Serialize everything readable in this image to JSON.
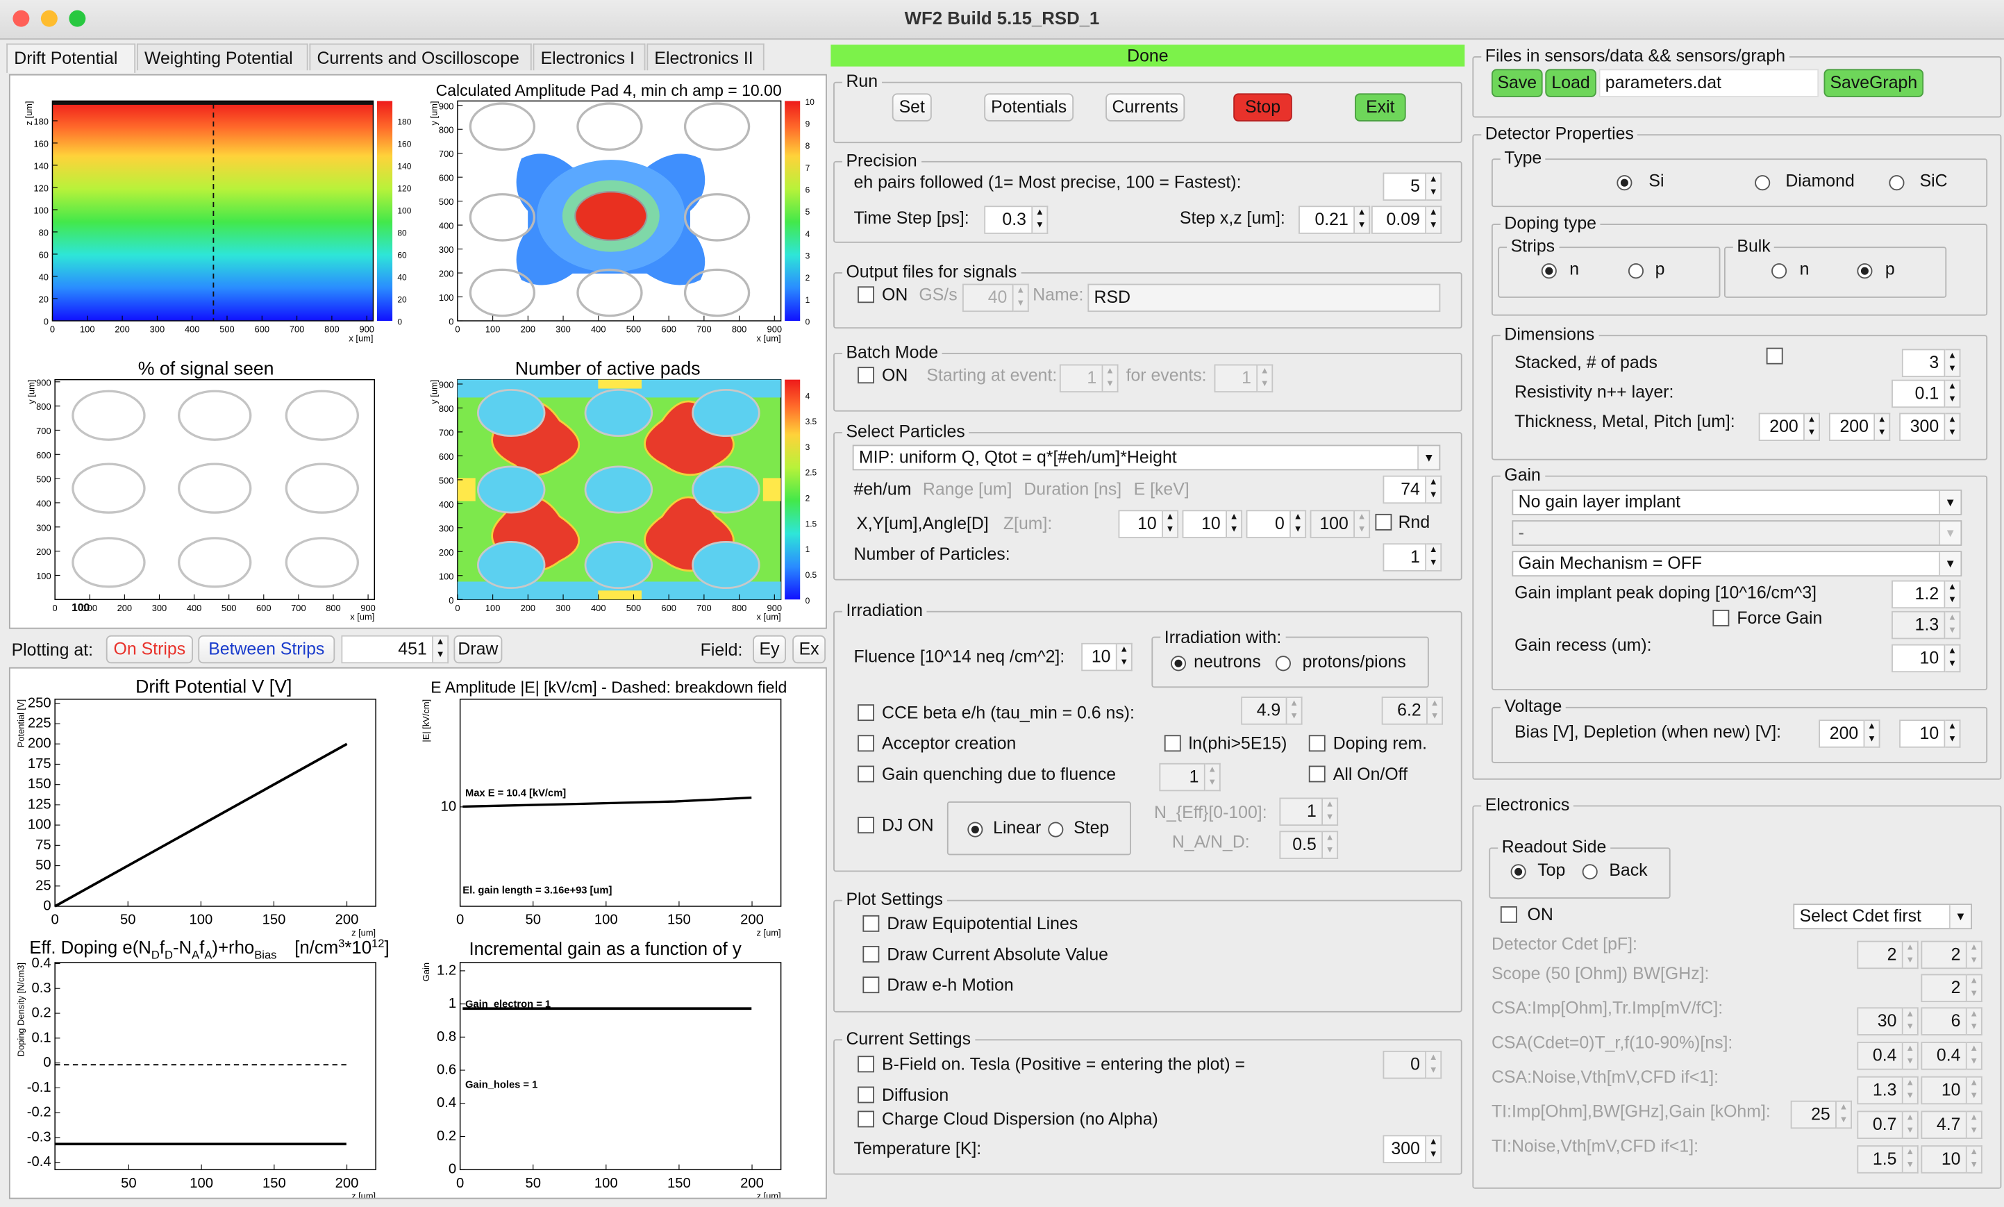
{
  "window": {
    "title": "WF2 Build 5.15_RSD_1",
    "close_color": "#ff5f57",
    "min_color": "#febc2e",
    "max_color": "#28c840"
  },
  "tabs": [
    "Drift Potential",
    "Weighting Potential",
    "Currents and Oscilloscope",
    "Electronics I",
    "Electronics II"
  ],
  "plots": {
    "p1": {
      "title": "",
      "xlabel": "x [um]",
      "ylabel": "z [um]",
      "xticks": [
        "0",
        "100",
        "200",
        "300",
        "400",
        "500",
        "600",
        "700",
        "800",
        "900"
      ],
      "yticks": [
        "0",
        "20",
        "40",
        "60",
        "80",
        "100",
        "120",
        "140",
        "160",
        "180"
      ],
      "palette_ticks": [
        "0",
        "20",
        "40",
        "60",
        "80",
        "100",
        "120",
        "140",
        "160",
        "180"
      ]
    },
    "p2": {
      "title": "Calculated Amplitude Pad 4, min ch amp = 10.00",
      "xlabel": "x [um]",
      "ylabel": "y [um]",
      "xticks": [
        "0",
        "100",
        "200",
        "300",
        "400",
        "500",
        "600",
        "700",
        "800",
        "900"
      ],
      "yticks": [
        "0",
        "100",
        "200",
        "300",
        "400",
        "500",
        "600",
        "700",
        "800",
        "900"
      ],
      "palette_ticks": [
        "0",
        "1",
        "2",
        "3",
        "4",
        "5",
        "6",
        "7",
        "8",
        "9",
        "10"
      ]
    },
    "p3": {
      "title": "% of signal seen",
      "xlabel": "x [um]",
      "ylabel": "y [um]",
      "xticks": [
        "0",
        "100",
        "200",
        "300",
        "400",
        "500",
        "600",
        "700",
        "800",
        "900"
      ],
      "yticks": [
        "100",
        "200",
        "300",
        "400",
        "500",
        "600",
        "700",
        "800",
        "900"
      ],
      "stat": "100"
    },
    "p4": {
      "title": "Number of active pads",
      "xlabel": "x [um]",
      "ylabel": "y [um]",
      "xticks": [
        "0",
        "100",
        "200",
        "300",
        "400",
        "500",
        "600",
        "700",
        "800",
        "900"
      ],
      "yticks": [
        "0",
        "100",
        "200",
        "300",
        "400",
        "500",
        "600",
        "700",
        "800",
        "900"
      ],
      "palette_ticks": [
        "0",
        "0.5",
        "1",
        "1.5",
        "2",
        "2.5",
        "3",
        "3.5",
        "4"
      ]
    },
    "p5": {
      "title": "Drift Potential V [V]",
      "xlabel": "z [um]",
      "ylabel": "Potential [V]",
      "xticks": [
        "0",
        "50",
        "100",
        "150",
        "200"
      ],
      "yticks": [
        "0",
        "25",
        "50",
        "75",
        "100",
        "125",
        "150",
        "175",
        "200",
        "225",
        "250"
      ]
    },
    "p6": {
      "title": "E Amplitude |E| [kV/cm] - Dashed: breakdown field",
      "xlabel": "z [um]",
      "ylabel": "|E| [kV/cm]",
      "xticks": [
        "0",
        "50",
        "100",
        "150",
        "200"
      ],
      "yticks": [
        "10"
      ],
      "annot1": "Max E =  10.4 [kV/cm]",
      "annot2": "El. gain length =  3.16e+93 [um]"
    },
    "p7": {
      "title": "Eff. Doping e(N",
      "title_sub1": "D",
      "title_mid1": "f",
      "title_sub2": "D",
      "title_mid2": "-N",
      "title_sub3": "A",
      "title_mid3": "f",
      "title_sub4": "A",
      "title_mid4": ")+rho",
      "title_sub5": "Bias",
      "title_units": "[n/cm",
      "title_sup1": "3",
      "title_units2": "*10",
      "title_sup2": "12",
      "title_units3": "]",
      "xlabel": "z [um]",
      "ylabel": "Doping Density [N/cm3]",
      "xticks": [
        "50",
        "100",
        "150",
        "200"
      ],
      "yticks": [
        "-0.4",
        "-0.3",
        "-0.2",
        "-0.1",
        "0",
        "0.1",
        "0.2",
        "0.3",
        "0.4"
      ]
    },
    "p8": {
      "title": "Incremental gain  as a function of y",
      "xlabel": "z [um]",
      "ylabel": "Gain",
      "xticks": [
        "0",
        "50",
        "100",
        "150",
        "200"
      ],
      "yticks": [
        "0",
        "0.2",
        "0.4",
        "0.6",
        "0.8",
        "1",
        "1.2"
      ],
      "annot1": "Gain_electron = 1",
      "annot2": "Gain_holes = 1"
    }
  },
  "plotting": {
    "label": "Plotting at:",
    "on_strips": "On Strips",
    "between_strips": "Between Strips",
    "value": "451",
    "draw": "Draw",
    "field_label": "Field:",
    "ey": "Ey",
    "ex": "Ex"
  },
  "status": {
    "text": "Done",
    "color": "#7cf24a"
  },
  "run": {
    "title": "Run",
    "set": "Set",
    "potentials": "Potentials",
    "currents": "Currents",
    "stop": "Stop",
    "exit": "Exit",
    "stop_color": "#e8322b",
    "exit_color": "#6ed65a"
  },
  "precision": {
    "title": "Precision",
    "eh_label": "eh pairs followed (1= Most precise, 100 = Fastest):",
    "eh_value": "5",
    "time_label": "Time Step [ps]:",
    "time_value": "0.3",
    "step_label": "Step x,z [um]:",
    "step_x": "0.21",
    "step_z": "0.09"
  },
  "output": {
    "title": "Output files for signals",
    "on": "ON",
    "gss": "GS/s",
    "gss_value": "40",
    "name_label": "Name:",
    "name_value": "RSD"
  },
  "batch": {
    "title": "Batch Mode",
    "on": "ON",
    "start_label": "Starting at event:",
    "start_value": "1",
    "for_label": "for events:",
    "for_value": "1"
  },
  "particles": {
    "title": "Select Particles",
    "selected": "MIP: uniform Q, Qtot = q*[#eh/um]*Height",
    "eh_label": "#eh/um",
    "range_label": "Range [um]",
    "duration_label": "Duration [ns]",
    "e_label": "E [keV]",
    "eh_value": "74",
    "xy_label": "X,Y[um],Angle[D]",
    "z_label": "Z[um]:",
    "x_value": "10",
    "y_value": "10",
    "angle_value": "0",
    "z_value": "100",
    "rnd": "Rnd",
    "num_label": "Number of Particles:",
    "num_value": "1"
  },
  "irradiation": {
    "title": "Irradiation",
    "fluence_label": "Fluence [10^14 neq /cm^2]:",
    "fluence_value": "10",
    "with_title": "Irradiation with:",
    "neutrons": "neutrons",
    "protons": "protons/pions",
    "cce_label": "CCE beta e/h (tau_min = 0.6 ns):",
    "cce_e": "4.9",
    "cce_h": "6.2",
    "acceptor": "Acceptor creation",
    "ln": "ln(phi>5E15)",
    "doping_rem": "Doping rem.",
    "gain_q": "Gain quenching due to fluence",
    "gain_q_value": "1",
    "all": "All On/Off",
    "dj": "DJ ON",
    "linear": "Linear",
    "step": "Step",
    "neff_label": "N_{Eff}[0-100]:",
    "neff_value": "1",
    "na_label": "N_A/N_D:",
    "na_value": "0.5"
  },
  "plot_settings": {
    "title": "Plot Settings",
    "equip": "Draw Equipotential Lines",
    "current_abs": "Draw Current Absolute Value",
    "eh_motion": "Draw e-h Motion"
  },
  "current_settings": {
    "title": "Current Settings",
    "bfield": "B-Field on. Tesla (Positive = entering the plot) =",
    "bfield_value": "0",
    "diffusion": "Diffusion",
    "cloud": "Charge Cloud Dispersion (no Alpha)",
    "temp_label": "Temperature [K]:",
    "temp_value": "300"
  },
  "files": {
    "title": "Files in sensors/data && sensors/graph",
    "save": "Save",
    "load": "Load",
    "filename": "parameters.dat",
    "savegraph": "SaveGraph",
    "btn_color": "#6ed65a"
  },
  "detector": {
    "title": "Detector Properties",
    "type_title": "Type",
    "si": "Si",
    "diamond": "Diamond",
    "sic": "SiC",
    "doping_title": "Doping type",
    "strips_title": "Strips",
    "bulk_title": "Bulk",
    "n": "n",
    "p": "p",
    "dim_title": "Dimensions",
    "stacked_label": "Stacked, # of pads",
    "stacked_value": "3",
    "resist_label": "Resistivity n++ layer:",
    "resist_value": "0.1",
    "thick_label": "Thickness, Metal, Pitch [um]:",
    "thick_value": "200",
    "metal_value": "200",
    "pitch_value": "300",
    "gain_title": "Gain",
    "gain_implant": "No gain layer implant",
    "gain_dash": "-",
    "gain_mech": "Gain Mechanism = OFF",
    "peak_label": "Gain implant peak doping [10^16/cm^3]",
    "peak_value": "1.2",
    "force_gain": "Force Gain",
    "force_value": "1.3",
    "recess_label": "Gain recess (um):",
    "recess_value": "10",
    "voltage_title": "Voltage",
    "bias_label": "Bias [V], Depletion (when new) [V]:",
    "bias_value": "200",
    "depl_value": "10"
  },
  "electronics": {
    "title": "Electronics",
    "readout_title": "Readout Side",
    "top": "Top",
    "back": "Back",
    "on": "ON",
    "cdet_select": "Select Cdet first",
    "cdet_label": "Detector Cdet [pF]:",
    "cdet1": "2",
    "cdet2": "2",
    "scope_label": "Scope (50 [Ohm]) BW[GHz]:",
    "scope_value": "2",
    "csa_imp_label": "CSA:Imp[Ohm],Tr.Imp[mV/fC]:",
    "csa_imp1": "30",
    "csa_imp2": "6",
    "csa_tr_label": "CSA(Cdet=0)T_r,f(10-90%)[ns]:",
    "csa_tr1": "0.4",
    "csa_tr2": "0.4",
    "csa_noise_label": "CSA:Noise,Vth[mV,CFD if<1]:",
    "csa_noise1": "1.3",
    "csa_noise2": "10",
    "ti_imp_label": "TI:Imp[Ohm],BW[GHz],Gain [kOhm]:",
    "ti_imp1": "25",
    "ti_imp2": "0.7",
    "ti_imp3": "4.7",
    "ti_noise_label": "TI:Noise,Vth[mV,CFD if<1]:",
    "ti_noise1": "1.5",
    "ti_noise2": "10"
  }
}
